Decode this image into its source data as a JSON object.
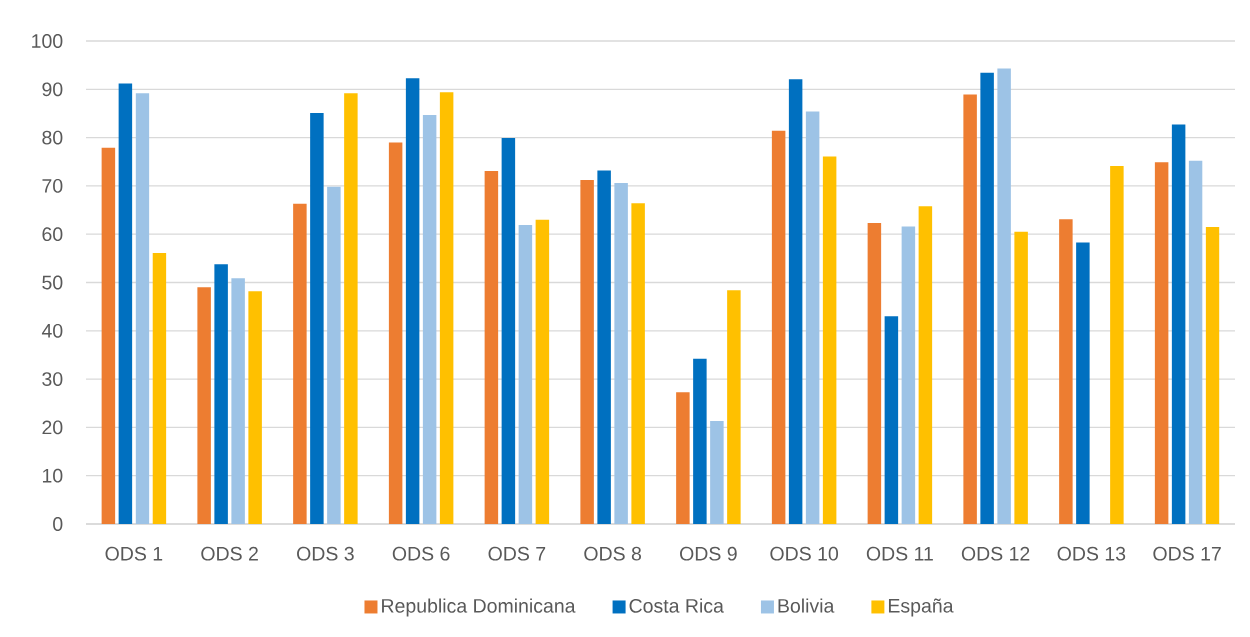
{
  "chart_data": {
    "type": "bar",
    "categories": [
      "ODS 1",
      "ODS 2",
      "ODS 3",
      "ODS 6",
      "ODS 7",
      "ODS 8",
      "ODS 9",
      "ODS 10",
      "ODS 11",
      "ODS 12",
      "ODS 13",
      "ODS 17"
    ],
    "series": [
      {
        "name": "Republica Dominicana",
        "color": "#ed7d31",
        "values": [
          77.9,
          49.0,
          66.3,
          79.0,
          73.1,
          71.2,
          27.3,
          81.4,
          62.3,
          88.9,
          63.1,
          74.9
        ]
      },
      {
        "name": "Costa Rica",
        "color": "#0070c0",
        "values": [
          91.2,
          53.8,
          85.1,
          92.3,
          79.9,
          73.2,
          34.2,
          92.1,
          43.0,
          93.4,
          58.3,
          82.7
        ]
      },
      {
        "name": "Bolivia",
        "color": "#9dc3e6",
        "values": [
          89.2,
          50.9,
          69.8,
          84.7,
          61.9,
          70.6,
          21.3,
          85.4,
          61.6,
          94.3,
          null,
          75.2
        ]
      },
      {
        "name": "España",
        "color": "#ffc000",
        "values": [
          56.1,
          48.2,
          89.2,
          89.4,
          63.0,
          66.4,
          48.4,
          76.1,
          65.8,
          60.5,
          74.1,
          61.5
        ]
      }
    ],
    "ylim": [
      0,
      100
    ],
    "yticks": [
      0,
      10,
      20,
      30,
      40,
      50,
      60,
      70,
      80,
      90,
      100
    ],
    "grid": "y",
    "legend": "bottom"
  }
}
